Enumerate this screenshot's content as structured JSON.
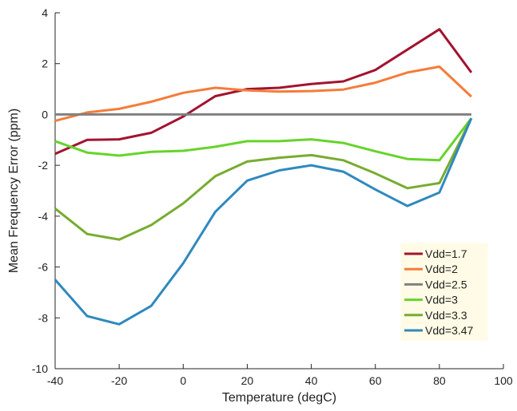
{
  "chart_data": {
    "type": "line",
    "xlabel": "Temperature (degC)",
    "ylabel": "Mean Frequency Error (ppm)",
    "xlim": [
      -40,
      100
    ],
    "ylim": [
      -10,
      4
    ],
    "xticks": [
      -40,
      -20,
      0,
      20,
      40,
      60,
      80,
      100
    ],
    "yticks": [
      -10,
      -8,
      -6,
      -4,
      -2,
      0,
      2,
      4
    ],
    "grid": false,
    "legend_position": "bottom-right",
    "x": [
      -40,
      -30,
      -20,
      -10,
      0,
      10,
      20,
      30,
      40,
      50,
      60,
      70,
      80,
      90
    ],
    "series": [
      {
        "name": "Vdd=1.7",
        "color": "#a2142f",
        "values": [
          -1.55,
          -1.0,
          -0.98,
          -0.72,
          -0.08,
          0.72,
          1.0,
          1.05,
          1.2,
          1.3,
          1.75,
          2.55,
          3.35,
          1.65
        ]
      },
      {
        "name": "Vdd=2",
        "color": "#f57c3a",
        "values": [
          -0.25,
          0.08,
          0.22,
          0.5,
          0.85,
          1.05,
          0.95,
          0.9,
          0.92,
          0.98,
          1.25,
          1.65,
          1.88,
          0.7
        ]
      },
      {
        "name": "Vdd=2.5",
        "color": "#808080",
        "values": [
          0,
          0,
          0,
          0,
          0,
          0,
          0,
          0,
          0,
          0,
          0,
          0,
          0,
          0
        ]
      },
      {
        "name": "Vdd=3",
        "color": "#66d42a",
        "values": [
          -1.05,
          -1.5,
          -1.62,
          -1.47,
          -1.43,
          -1.27,
          -1.05,
          -1.05,
          -0.98,
          -1.12,
          -1.45,
          -1.75,
          -1.8,
          -0.15
        ]
      },
      {
        "name": "Vdd=3.3",
        "color": "#77ac30",
        "values": [
          -3.7,
          -4.7,
          -4.92,
          -4.35,
          -3.5,
          -2.43,
          -1.85,
          -1.7,
          -1.6,
          -1.8,
          -2.32,
          -2.9,
          -2.7,
          -0.15
        ]
      },
      {
        "name": "Vdd=3.47",
        "color": "#2f89bf",
        "values": [
          -6.5,
          -7.93,
          -8.25,
          -7.53,
          -5.85,
          -3.83,
          -2.6,
          -2.2,
          -2.0,
          -2.25,
          -2.95,
          -3.6,
          -3.07,
          -0.15
        ]
      }
    ]
  }
}
